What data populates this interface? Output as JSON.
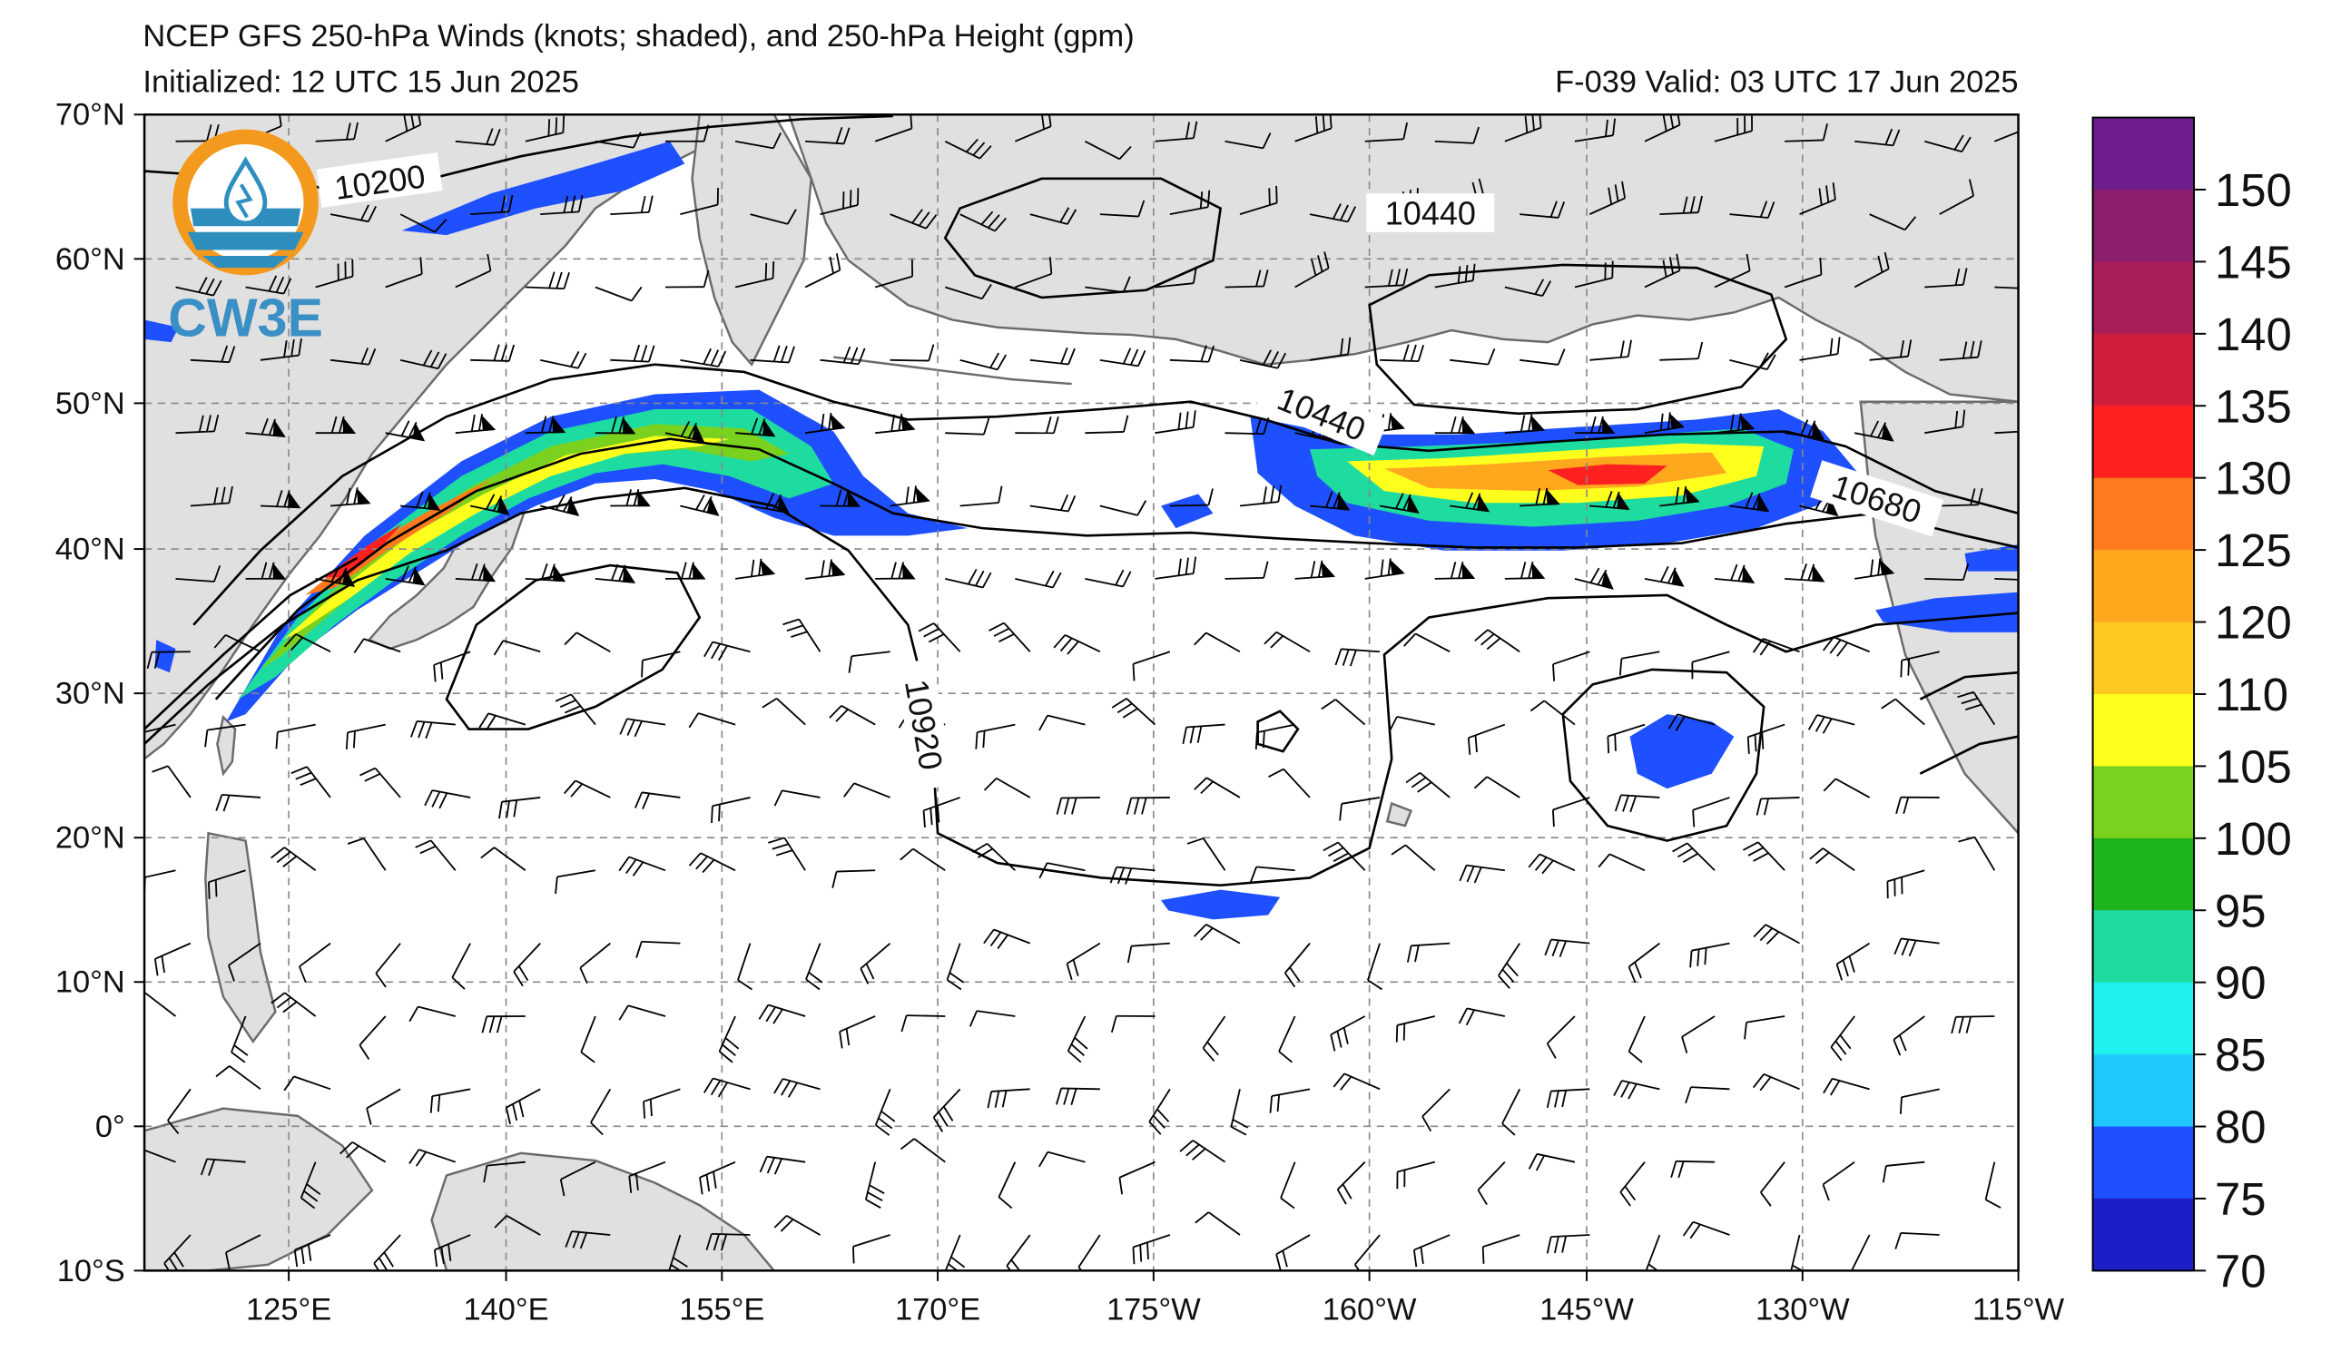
{
  "header": {
    "title": "NCEP GFS 250-hPa Winds (knots; shaded), and 250-hPa Height (gpm)",
    "initialized": "Initialized: 12 UTC 15 Jun 2025",
    "valid": "F-039  Valid: 03 UTC 17 Jun 2025"
  },
  "logo": {
    "text": "CW3E",
    "ring_color": "#F39A1E",
    "wave_color": "#2E8FBF",
    "text_color": "#3A8FC4",
    "icon": "water-drop-icon"
  },
  "map": {
    "lat_range": [
      -10,
      70
    ],
    "lon_range": [
      "115°E",
      "115°W"
    ],
    "lat_labels": [
      "70°N",
      "60°N",
      "50°N",
      "40°N",
      "30°N",
      "20°N",
      "10°N",
      "0°",
      "10°S"
    ],
    "lon_labels": [
      "125°E",
      "140°E",
      "155°E",
      "170°E",
      "175°W",
      "160°W",
      "145°W",
      "130°W",
      "115°W"
    ],
    "contour_labels": [
      "10200",
      "10440",
      "10440",
      "10680",
      "10920"
    ],
    "land_color": "#E0E0E0",
    "coast_color": "#6B6B6B",
    "grid_color": "#888888"
  },
  "colorbar": {
    "ticks": [
      "150",
      "145",
      "140",
      "135",
      "130",
      "125",
      "120",
      "110",
      "105",
      "100",
      "95",
      "90",
      "85",
      "80",
      "75",
      "70"
    ],
    "colors_top_to_bottom": [
      "#6E1E8C",
      "#8C1E6E",
      "#A81E5A",
      "#D01E3C",
      "#FF2020",
      "#FF7A1E",
      "#FFA81E",
      "#FFC81E",
      "#FFFF1E",
      "#7AD21E",
      "#1EB41E",
      "#1EDCA0",
      "#1EF0F0",
      "#1EC8FF",
      "#1E50FF",
      "#1E1EC8"
    ]
  }
}
